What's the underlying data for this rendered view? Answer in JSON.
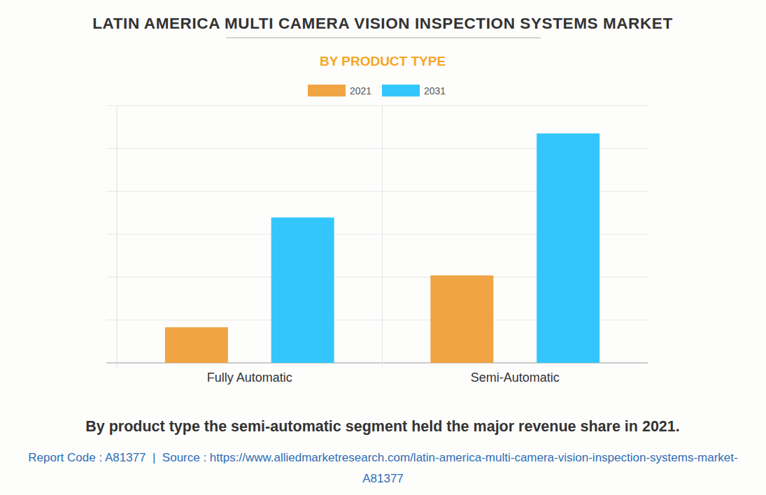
{
  "chart_data": {
    "type": "bar",
    "title": "LATIN AMERICA MULTI CAMERA VISION INSPECTION SYSTEMS MARKET",
    "subtitle": "BY PRODUCT TYPE",
    "categories": [
      "Fully Automatic",
      "Semi-Automatic"
    ],
    "series": [
      {
        "name": "2021",
        "color": "#f0a444",
        "values": [
          0.83,
          2.04
        ]
      },
      {
        "name": "2031",
        "color": "#33c6fd",
        "values": [
          3.39,
          5.35
        ]
      }
    ],
    "ylim": [
      0,
      6
    ],
    "yticks": [
      0,
      1,
      2,
      3,
      4,
      5,
      6
    ],
    "grid": true,
    "tick_labels": "x",
    "legend": "top",
    "annotations": [
      "By product type the semi-automatic segment held the major revenue share in 2021.",
      "Report Code : A81377  |  Source : https://www.alliedmarketresearch.com/latin-america-multi-camera-vision-inspection-systems-market-A81377"
    ]
  }
}
